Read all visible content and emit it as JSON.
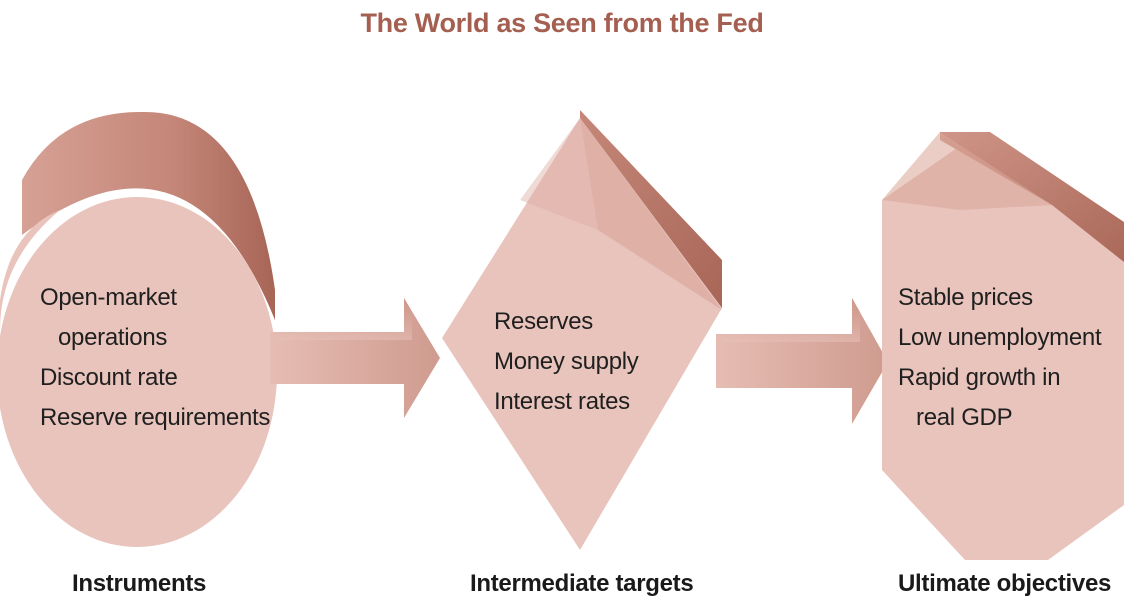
{
  "title": "The World as Seen from the Fed",
  "stages": [
    {
      "label": "Instruments",
      "items": [
        "Open-market",
        "operations",
        "Discount rate",
        "Reserve requirements"
      ]
    },
    {
      "label": "Intermediate targets",
      "items": [
        "Reserves",
        "Money supply",
        "Interest rates"
      ]
    },
    {
      "label": "Ultimate objectives",
      "items": [
        "Stable prices",
        "Low unemployment",
        "Rapid growth in",
        "real GDP"
      ]
    }
  ],
  "colors": {
    "title": "#a45f50",
    "shape_fill": "#e9c3bb",
    "shape_shade": "#b8776a",
    "arrow": "#dcaea3"
  }
}
